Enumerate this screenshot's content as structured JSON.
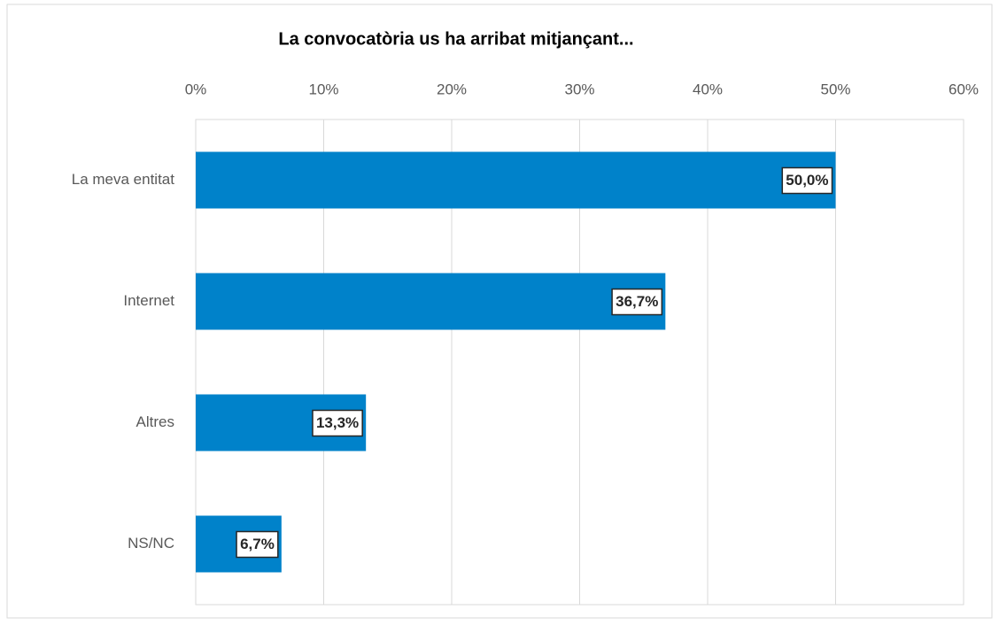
{
  "chart_data": {
    "type": "bar",
    "orientation": "horizontal",
    "title": "La convocatòria us ha arribat mitjançant...",
    "categories": [
      "La meva entitat",
      "Internet",
      "Altres",
      "NS/NC"
    ],
    "values": [
      50.0,
      36.7,
      13.3,
      6.7
    ],
    "value_labels": [
      "50,0%",
      "36,7%",
      "13,3%",
      "6,7%"
    ],
    "color": "#0082ca",
    "xlim": [
      0,
      60
    ],
    "xticks": [
      {
        "value": 0,
        "label": "0%"
      },
      {
        "value": 10,
        "label": "10%"
      },
      {
        "value": 20,
        "label": "20%"
      },
      {
        "value": 30,
        "label": "30%"
      },
      {
        "value": 40,
        "label": "40%"
      },
      {
        "value": 50,
        "label": "50%"
      },
      {
        "value": 60,
        "label": "60%"
      }
    ],
    "grid": true
  }
}
